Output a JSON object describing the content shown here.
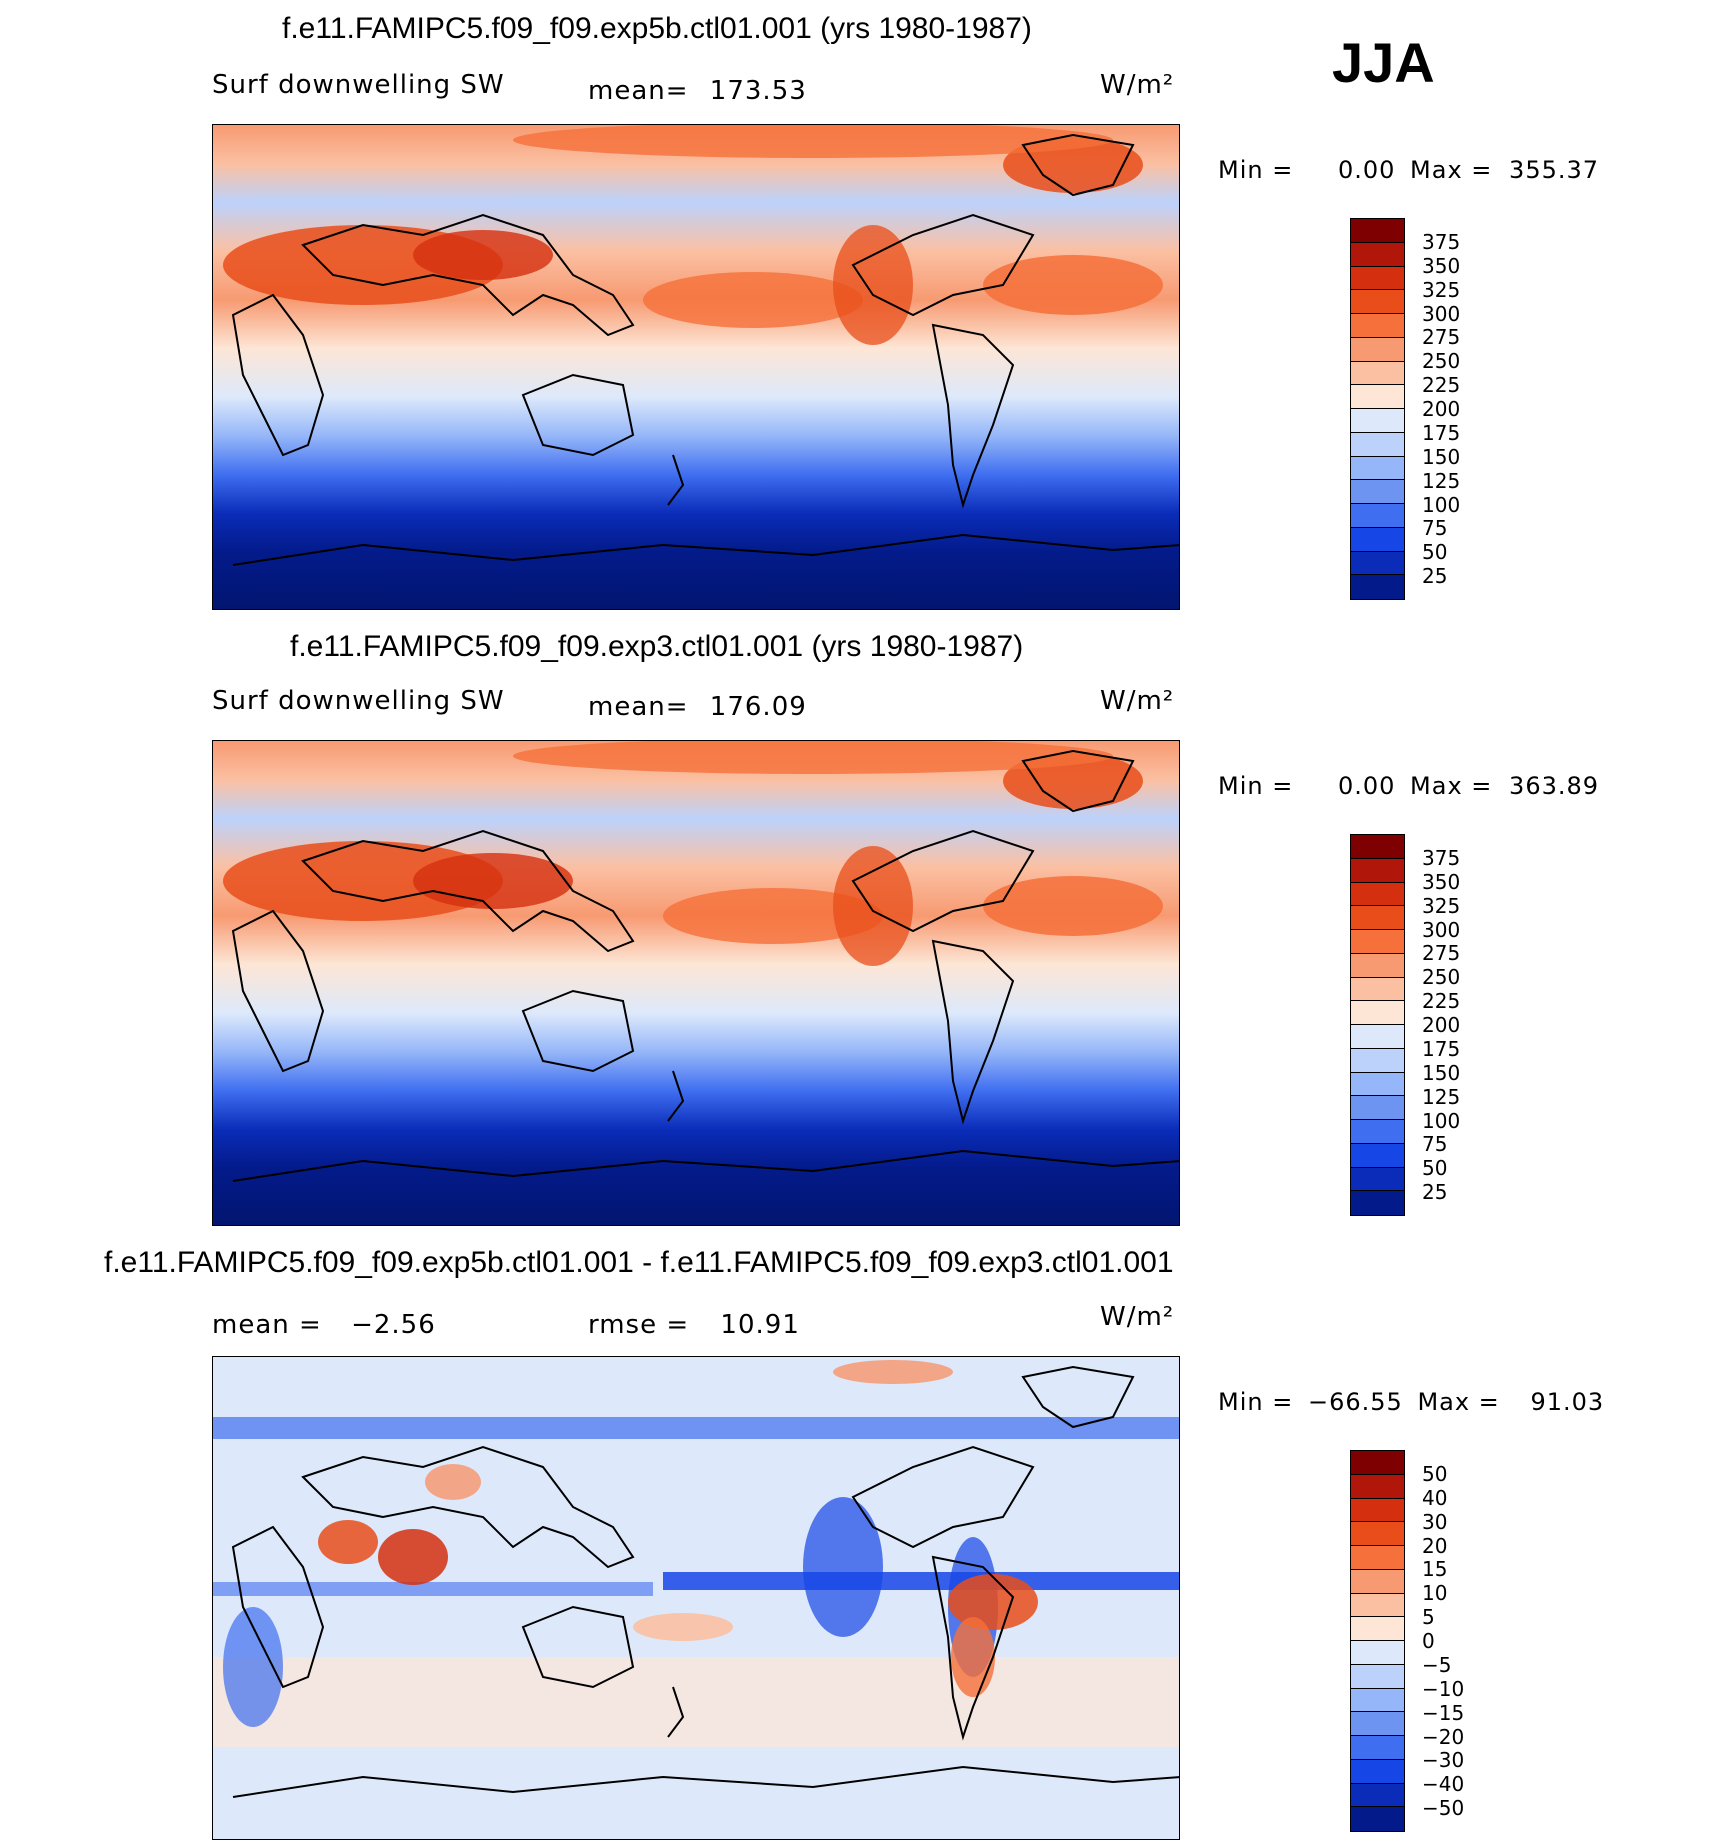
{
  "season": "JJA",
  "panels": [
    {
      "title": "f.e11.FAMIPC5.f09_f09.exp5b.ctl01.001 (yrs 1980-1987)",
      "variable": "Surf downwelling SW",
      "mean_label": "mean=",
      "mean_value": "173.53",
      "units": "W/m²",
      "min_label": "Min =",
      "min_value": "0.00",
      "max_label": "Max =",
      "max_value": "355.37",
      "colorbar": {
        "labels": [
          "375",
          "350",
          "325",
          "300",
          "275",
          "250",
          "225",
          "200",
          "175",
          "150",
          "125",
          "100",
          "75",
          "50",
          "25"
        ],
        "colors": [
          "#7f0000",
          "#b0170a",
          "#d4300f",
          "#e84d1a",
          "#f5703a",
          "#f79a72",
          "#fbc0a2",
          "#fde6d6",
          "#dde9fb",
          "#bcd2fb",
          "#95b6f8",
          "#6e94f2",
          "#3f6ef0",
          "#1746e6",
          "#0a2cb8",
          "#031a8a"
        ]
      },
      "map_style": "absolute"
    },
    {
      "title": "f.e11.FAMIPC5.f09_f09.exp3.ctl01.001 (yrs 1980-1987)",
      "variable": "Surf downwelling SW",
      "mean_label": "mean=",
      "mean_value": "176.09",
      "units": "W/m²",
      "min_label": "Min =",
      "min_value": "0.00",
      "max_label": "Max =",
      "max_value": "363.89",
      "colorbar": {
        "labels": [
          "375",
          "350",
          "325",
          "300",
          "275",
          "250",
          "225",
          "200",
          "175",
          "150",
          "125",
          "100",
          "75",
          "50",
          "25"
        ],
        "colors": [
          "#7f0000",
          "#b0170a",
          "#d4300f",
          "#e84d1a",
          "#f5703a",
          "#f79a72",
          "#fbc0a2",
          "#fde6d6",
          "#dde9fb",
          "#bcd2fb",
          "#95b6f8",
          "#6e94f2",
          "#3f6ef0",
          "#1746e6",
          "#0a2cb8",
          "#031a8a"
        ]
      },
      "map_style": "absolute"
    },
    {
      "title": "f.e11.FAMIPC5.f09_f09.exp5b.ctl01.001 - f.e11.FAMIPC5.f09_f09.exp3.ctl01.001",
      "variable": "mean =",
      "mean_label": "",
      "mean_value": "−2.56",
      "rmse_label": "rmse =",
      "rmse_value": "10.91",
      "units": "W/m²",
      "min_label": "Min =",
      "min_value": "−66.55",
      "max_label": "Max =",
      "max_value": "91.03",
      "colorbar": {
        "labels": [
          "50",
          "40",
          "30",
          "20",
          "15",
          "10",
          "5",
          "0",
          "−5",
          "−10",
          "−15",
          "−20",
          "−30",
          "−40",
          "−50"
        ],
        "colors": [
          "#7f0000",
          "#b0170a",
          "#d4300f",
          "#e84d1a",
          "#f5703a",
          "#f79a72",
          "#fbc0a2",
          "#fde6d6",
          "#dde9fb",
          "#bcd2fb",
          "#95b6f8",
          "#6e94f2",
          "#3f6ef0",
          "#1746e6",
          "#0a2cb8",
          "#031a8a"
        ]
      },
      "map_style": "difference"
    }
  ]
}
